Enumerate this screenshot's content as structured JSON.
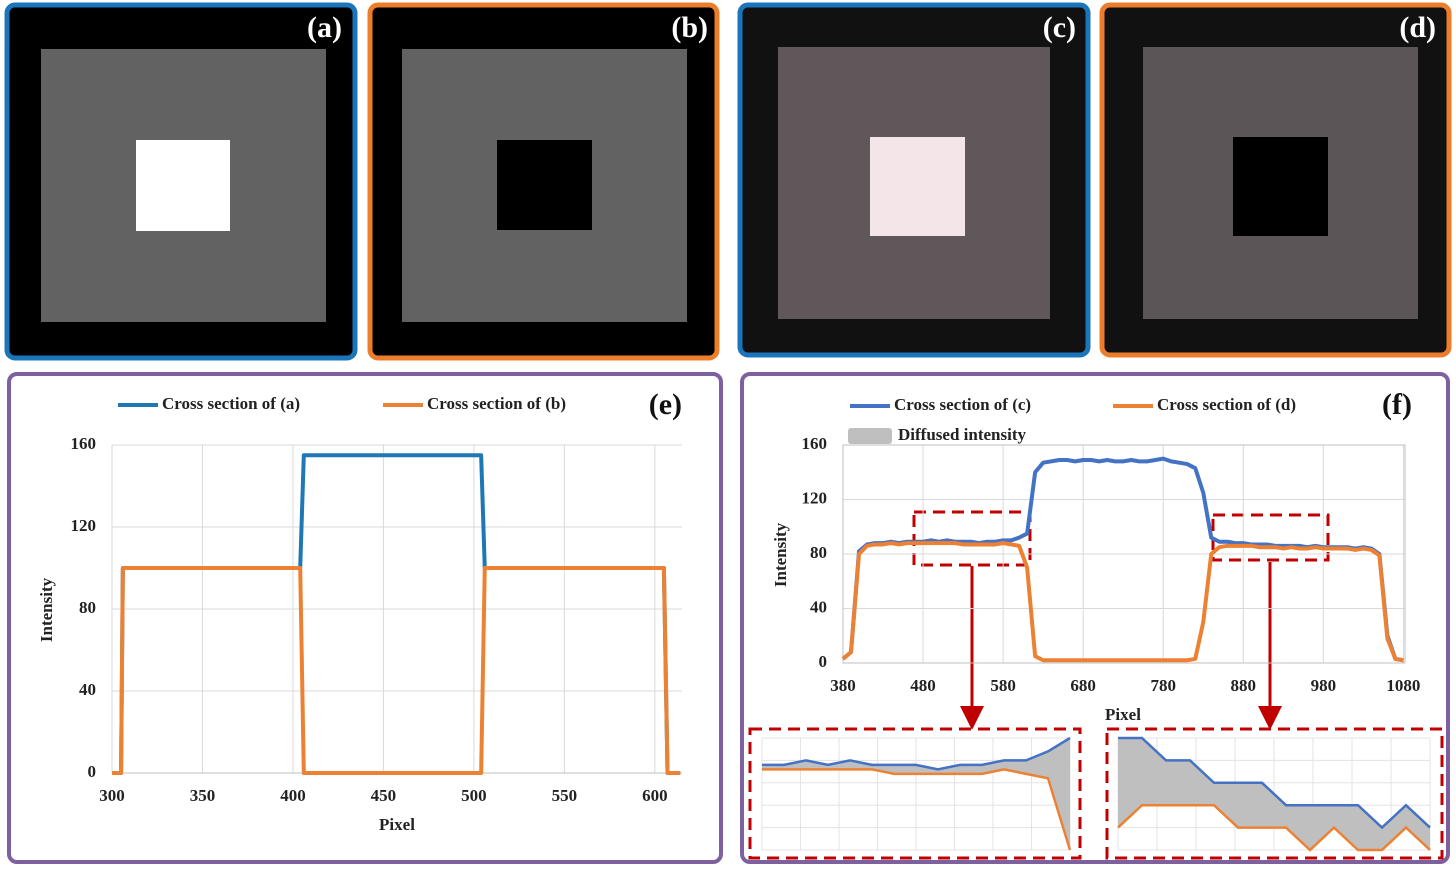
{
  "panels": [
    {
      "label": "(a)"
    },
    {
      "label": "(b)"
    },
    {
      "label": "(c)"
    },
    {
      "label": "(d)"
    }
  ],
  "chart_data": [
    {
      "type": "line",
      "title": "(e)",
      "x_label": "Pixel",
      "y_label": "Intensity",
      "x": [
        300,
        305,
        306,
        404,
        406,
        504,
        506,
        605,
        607,
        614
      ],
      "series": [
        {
          "name": "Cross section of (a)",
          "color": "#1f77b4",
          "values": [
            0,
            0,
            100,
            100,
            155,
            155,
            100,
            100,
            0,
            0
          ]
        },
        {
          "name": "Cross section of (b)",
          "color": "#ed8133",
          "values": [
            0,
            0,
            100,
            100,
            0,
            0,
            100,
            100,
            0,
            0
          ]
        }
      ],
      "xlim": [
        300,
        615
      ],
      "xticks": [
        300,
        350,
        400,
        450,
        500,
        550,
        600
      ],
      "ylim": [
        0,
        160
      ],
      "yticks": [
        0,
        40,
        80,
        120,
        160
      ],
      "grid": true
    },
    {
      "type": "line",
      "title": "(f)",
      "x_label": "Pixel",
      "y_label": "Intensity",
      "x": [
        380,
        390,
        400,
        410,
        420,
        430,
        440,
        450,
        460,
        470,
        480,
        490,
        500,
        510,
        520,
        530,
        540,
        550,
        560,
        570,
        580,
        590,
        600,
        610,
        620,
        630,
        640,
        650,
        660,
        670,
        680,
        690,
        700,
        710,
        720,
        730,
        740,
        750,
        760,
        770,
        780,
        790,
        800,
        810,
        820,
        830,
        840,
        850,
        860,
        870,
        880,
        890,
        900,
        910,
        920,
        930,
        940,
        950,
        960,
        970,
        980,
        990,
        1000,
        1010,
        1020,
        1030,
        1040,
        1050,
        1060,
        1070,
        1080
      ],
      "series": [
        {
          "name": "Cross section of (c)",
          "color": "#4472c4",
          "values": [
            3,
            8,
            82,
            87,
            88,
            88,
            89,
            88,
            89,
            89,
            89,
            90,
            89,
            90,
            89,
            89,
            89,
            88,
            89,
            89,
            90,
            90,
            92,
            95,
            140,
            147,
            148,
            149,
            149,
            148,
            149,
            149,
            148,
            149,
            148,
            148,
            149,
            148,
            148,
            149,
            150,
            148,
            147,
            146,
            143,
            125,
            92,
            89,
            89,
            88,
            88,
            87,
            87,
            87,
            86,
            86,
            86,
            86,
            85,
            86,
            85,
            85,
            85,
            85,
            84,
            85,
            84,
            80,
            20,
            3,
            2
          ]
        },
        {
          "name": "Cross section of (d)",
          "color": "#ed8133",
          "values": [
            3,
            8,
            80,
            86,
            87,
            87,
            88,
            87,
            88,
            88,
            88,
            88,
            88,
            88,
            88,
            87,
            87,
            87,
            87,
            87,
            88,
            87,
            86,
            70,
            5,
            2,
            2,
            2,
            2,
            2,
            2,
            2,
            2,
            2,
            2,
            2,
            2,
            2,
            2,
            2,
            2,
            2,
            2,
            2,
            3,
            30,
            80,
            85,
            86,
            86,
            86,
            86,
            85,
            85,
            85,
            84,
            85,
            84,
            84,
            85,
            84,
            84,
            84,
            84,
            83,
            84,
            83,
            79,
            18,
            3,
            2
          ]
        }
      ],
      "fill": {
        "name": "Diffused intensity",
        "color": "#bfbfbf"
      },
      "xlim": [
        380,
        1082
      ],
      "xticks": [
        380,
        480,
        580,
        680,
        780,
        880,
        980,
        1080
      ],
      "ylim": [
        0,
        160
      ],
      "yticks": [
        0,
        40,
        80,
        120,
        160
      ],
      "grid": true
    }
  ]
}
